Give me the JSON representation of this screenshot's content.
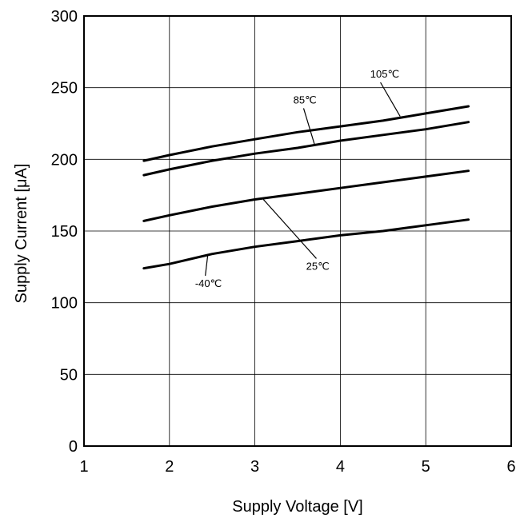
{
  "chart_data": {
    "type": "line",
    "title": "",
    "xlabel": "Supply Voltage [V]",
    "ylabel": "Supply Current [μA]",
    "xlim": [
      1,
      6
    ],
    "ylim": [
      0,
      300
    ],
    "x_ticks": [
      "1",
      "2",
      "3",
      "4",
      "5",
      "6"
    ],
    "y_ticks": [
      "0",
      "50",
      "100",
      "150",
      "200",
      "250",
      "300"
    ],
    "grid": true,
    "legend": "none",
    "line_color": "#000000",
    "series": [
      {
        "name": "105℃",
        "x": [
          1.7,
          2.0,
          2.5,
          3.0,
          3.5,
          4.0,
          4.5,
          5.0,
          5.5
        ],
        "y": [
          199,
          203,
          209,
          214,
          219,
          223,
          227,
          232,
          237
        ]
      },
      {
        "name": "85℃",
        "x": [
          1.7,
          2.0,
          2.5,
          3.0,
          3.5,
          4.0,
          4.5,
          5.0,
          5.5
        ],
        "y": [
          189,
          193,
          199,
          204,
          208,
          213,
          217,
          221,
          226
        ]
      },
      {
        "name": "25℃",
        "x": [
          1.7,
          2.0,
          2.5,
          3.0,
          3.5,
          4.0,
          4.5,
          5.0,
          5.5
        ],
        "y": [
          157,
          161,
          167,
          172,
          176,
          180,
          184,
          188,
          192
        ]
      },
      {
        "name": "-40℃",
        "x": [
          1.7,
          2.0,
          2.5,
          3.0,
          3.5,
          4.0,
          4.5,
          5.0,
          5.5
        ],
        "y": [
          124,
          127,
          134,
          139,
          143,
          147,
          150,
          154,
          158
        ]
      }
    ],
    "annotations": [
      {
        "text": "105℃",
        "series": "105℃",
        "point_x": 4.7,
        "point_y": 230,
        "label_x": 4.35,
        "label_y": 257
      },
      {
        "text": "85℃",
        "series": "85℃",
        "point_x": 3.7,
        "point_y": 210,
        "label_x": 3.45,
        "label_y": 239
      },
      {
        "text": "25℃",
        "series": "25℃",
        "point_x": 3.1,
        "point_y": 172,
        "label_x": 3.6,
        "label_y": 123
      },
      {
        "text": "-40℃",
        "series": "-40℃",
        "point_x": 2.45,
        "point_y": 134,
        "label_x": 2.3,
        "label_y": 111
      }
    ]
  }
}
